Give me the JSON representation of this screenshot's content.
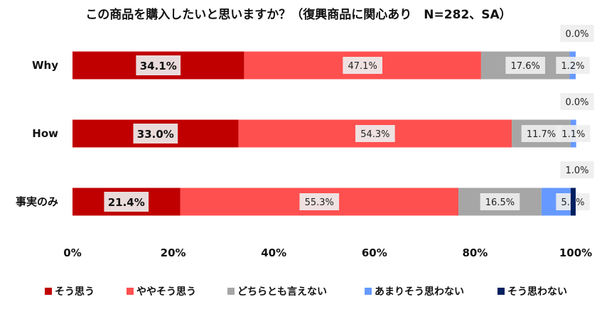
{
  "chart_data": {
    "type": "bar",
    "orientation": "horizontal",
    "stacked": "100%",
    "title": "この商品を購入したいと思いますか？（復興商品に関心あり　N=282、SA）",
    "categories": [
      "Why",
      "How",
      "事実のみ"
    ],
    "series": [
      {
        "name": "そう思う",
        "color": "#c00000",
        "values": [
          34.1,
          33.0,
          21.4
        ]
      },
      {
        "name": "ややそう思う",
        "color": "#ff5050",
        "values": [
          47.1,
          54.3,
          55.3
        ]
      },
      {
        "name": "どちらとも言えない",
        "color": "#a6a6a6",
        "values": [
          17.6,
          11.7,
          16.5
        ]
      },
      {
        "name": "あまりそう思わない",
        "color": "#6699ff",
        "values": [
          1.2,
          1.1,
          5.8
        ]
      },
      {
        "name": "そう思わない",
        "color": "#002060",
        "values": [
          0.0,
          0.0,
          1.0
        ]
      }
    ],
    "x_ticks": [
      "0%",
      "20%",
      "40%",
      "60%",
      "80%",
      "100%"
    ],
    "xlim": [
      0,
      100
    ],
    "grid": false,
    "legend_position": "bottom"
  }
}
